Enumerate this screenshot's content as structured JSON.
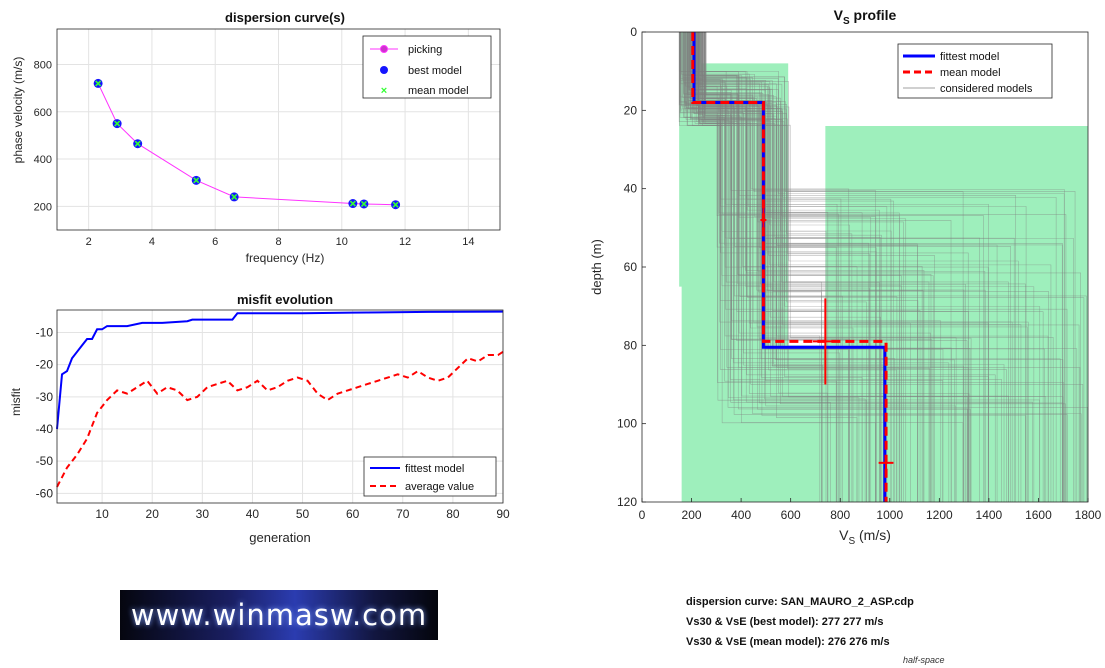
{
  "colors": {
    "picking": "#ff33ff",
    "best": "#1515ff",
    "mean": "#33ff33",
    "fittest": "#0000ff",
    "average": "#ff0000",
    "considered": "#808080",
    "band": "#7ee9a6"
  },
  "summary": {
    "line1": "dispersion curve: SAN_MAURO_2_ASP.cdp",
    "line2": "Vs30 & VsE (best model): 277  277 m/s",
    "line3": "Vs30 & VsE (mean model): 276  276 m/s"
  },
  "half_space_label": "half-space",
  "logo_text": "www.winmasw.com",
  "chart_data": [
    {
      "id": "dispersion",
      "type": "scatter",
      "title": "dispersion curve(s)",
      "xlabel": "frequency (Hz)",
      "ylabel": "phase velocity (m/s)",
      "xlim": [
        1,
        15
      ],
      "ylim": [
        100,
        950
      ],
      "xticks": [
        2,
        4,
        6,
        8,
        10,
        12,
        14
      ],
      "yticks": [
        200,
        400,
        600,
        800
      ],
      "grid": true,
      "legend_position": "top-right",
      "series": [
        {
          "name": "picking",
          "x": [
            2.3,
            2.9,
            3.55,
            5.4,
            6.6,
            10.35,
            10.7,
            11.7
          ],
          "y": [
            720,
            550,
            465,
            310,
            240,
            212,
            210,
            207
          ]
        },
        {
          "name": "best model",
          "x": [
            2.3,
            2.9,
            3.55,
            5.4,
            6.6,
            10.35,
            10.7,
            11.7
          ],
          "y": [
            720,
            550,
            465,
            310,
            240,
            212,
            210,
            207
          ]
        },
        {
          "name": "mean model",
          "x": [
            2.3,
            2.9,
            3.55,
            5.4,
            6.6,
            10.35,
            10.7,
            11.7
          ],
          "y": [
            720,
            550,
            465,
            310,
            240,
            212,
            210,
            207
          ]
        }
      ]
    },
    {
      "id": "misfit",
      "type": "line",
      "title": "misfit evolution",
      "xlabel": "generation",
      "ylabel": "misfit",
      "xlim": [
        1,
        90
      ],
      "ylim": [
        -63,
        -3
      ],
      "xticks": [
        10,
        20,
        30,
        40,
        50,
        60,
        70,
        80,
        90
      ],
      "yticks": [
        -60,
        -50,
        -40,
        -30,
        -20,
        -10
      ],
      "grid": true,
      "legend_position": "bottom-right",
      "series": [
        {
          "name": "fittest model",
          "x": [
            1,
            2,
            3,
            4,
            5,
            6,
            7,
            8,
            9,
            10,
            11,
            12,
            15,
            18,
            22,
            27,
            28,
            36,
            37,
            50,
            60,
            75,
            90
          ],
          "y": [
            -40,
            -23,
            -22,
            -18,
            -16,
            -14,
            -12,
            -12,
            -9,
            -9,
            -8,
            -8,
            -8,
            -7,
            -7,
            -6.5,
            -6,
            -6,
            -4,
            -4,
            -3.8,
            -3.6,
            -3.5
          ]
        },
        {
          "name": "average value",
          "x": [
            1,
            3,
            5,
            7,
            9,
            11,
            13,
            15,
            17,
            19,
            21,
            23,
            25,
            27,
            29,
            31,
            33,
            35,
            37,
            39,
            41,
            43,
            45,
            47,
            49,
            51,
            53,
            55,
            57,
            59,
            61,
            63,
            65,
            67,
            69,
            71,
            73,
            75,
            77,
            79,
            81,
            83,
            85,
            87,
            89,
            90
          ],
          "y": [
            -58,
            -52,
            -48,
            -43,
            -35,
            -31,
            -28,
            -29,
            -27,
            -25,
            -29,
            -27,
            -28,
            -31,
            -30,
            -27,
            -26,
            -25,
            -28,
            -27,
            -25,
            -28,
            -27,
            -25,
            -24,
            -25,
            -29,
            -31,
            -29,
            -28,
            -27,
            -26,
            -25,
            -24,
            -23,
            -24,
            -22,
            -24,
            -25,
            -24,
            -21,
            -18,
            -19,
            -17,
            -17,
            -16
          ]
        }
      ]
    },
    {
      "id": "vs-profile",
      "type": "line",
      "title": "V",
      "title_sub": "S",
      "title_suffix": " profile",
      "xlabel": "V",
      "xlabel_sub": "S",
      "xlabel_suffix": " (m/s)",
      "ylabel": "depth (m)",
      "xlim": [
        0,
        1800
      ],
      "ylim": [
        0,
        120
      ],
      "y_reversed": true,
      "xticks": [
        0,
        200,
        400,
        600,
        800,
        1000,
        1200,
        1400,
        1600,
        1800
      ],
      "yticks": [
        0,
        20,
        40,
        60,
        80,
        100,
        120
      ],
      "grid": false,
      "legend_position": "top-right",
      "series": [
        {
          "name": "fittest model",
          "vs": [
            210,
            490,
            980
          ],
          "depth_breaks": [
            18,
            80.5
          ]
        },
        {
          "name": "mean model",
          "vs": [
            205,
            490,
            985
          ],
          "depth_breaks": [
            18,
            79
          ]
        },
        {
          "name": "considered models"
        }
      ]
    }
  ]
}
